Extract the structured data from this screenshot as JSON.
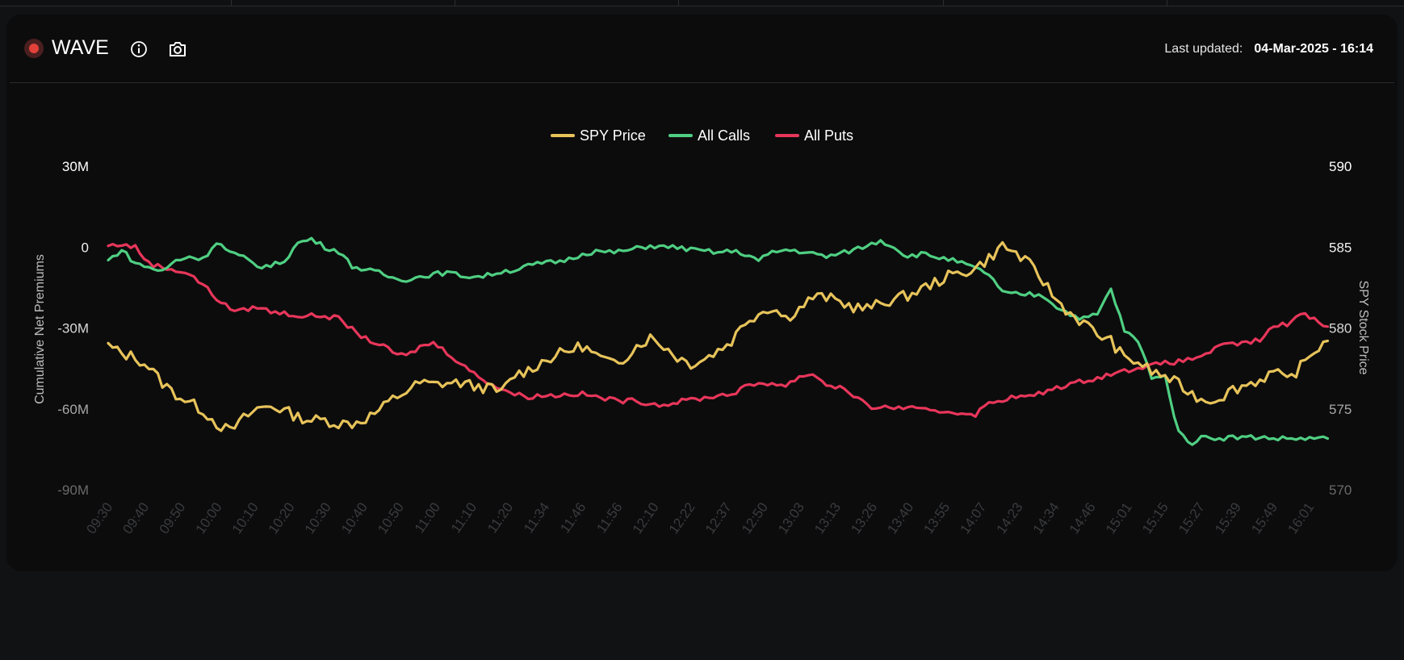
{
  "panel": {
    "title": "WAVE",
    "last_updated_label": "Last updated:",
    "last_updated_value": "04-Mar-2025 - 16:14"
  },
  "icons": {
    "status": "status-dot-icon",
    "info": "info-icon",
    "snapshot": "camera-icon"
  },
  "colors": {
    "spy": "#e7c35a",
    "calls": "#4fcf82",
    "puts": "#e8365a",
    "background": "#0c0c0d"
  },
  "chart_data": {
    "type": "line",
    "legend": [
      "SPY Price",
      "All Calls",
      "All Puts"
    ],
    "legend_position": "top-center",
    "ylabel_left": "Cumulative Net Premiums",
    "ylabel_right": "SPY Stock Price",
    "yticks_left": [
      "30M",
      "0",
      "-30M",
      "-60M",
      "-90M"
    ],
    "yticks_right": [
      "590",
      "585",
      "580",
      "575",
      "570"
    ],
    "ylim_left": [
      -90,
      30
    ],
    "ylim_right": [
      570,
      590
    ],
    "x_ticks": [
      "09:30",
      "09:40",
      "09:50",
      "10:00",
      "10:10",
      "10:20",
      "10:30",
      "10:40",
      "10:50",
      "11:00",
      "11:10",
      "11:20",
      "11:34",
      "11:46",
      "11:56",
      "12:10",
      "12:22",
      "12:37",
      "12:50",
      "13:03",
      "13:13",
      "13:26",
      "13:40",
      "13:55",
      "14:07",
      "14:23",
      "14:34",
      "14:46",
      "15:01",
      "15:15",
      "15:27",
      "15:39",
      "15:49",
      "16:01"
    ],
    "series": [
      {
        "name": "SPY Price",
        "axis": "right",
        "color": "#e7c35a",
        "points": [
          [
            0,
            578.9
          ],
          [
            1,
            578.4
          ],
          [
            2,
            578.2
          ],
          [
            3,
            577.6
          ],
          [
            4,
            576.6
          ],
          [
            5,
            575.9
          ],
          [
            6,
            575.4
          ],
          [
            7,
            574.9
          ],
          [
            8,
            574.1
          ],
          [
            9,
            573.6
          ],
          [
            10,
            574.4
          ],
          [
            11,
            575.0
          ],
          [
            12,
            575.2
          ],
          [
            13,
            574.9
          ],
          [
            14,
            574.5
          ],
          [
            15,
            574.3
          ],
          [
            16,
            574.3
          ],
          [
            17,
            574.1
          ],
          [
            18,
            574.1
          ],
          [
            19,
            574.4
          ],
          [
            20,
            574.9
          ],
          [
            21,
            575.6
          ],
          [
            22,
            576.1
          ],
          [
            23,
            576.6
          ],
          [
            24,
            576.5
          ],
          [
            25,
            576.6
          ],
          [
            26,
            576.6
          ],
          [
            27,
            576.4
          ],
          [
            28,
            576.3
          ],
          [
            29,
            576.0
          ],
          [
            30,
            577.1
          ],
          [
            31,
            577.4
          ],
          [
            32,
            577.9
          ],
          [
            33,
            578.3
          ],
          [
            34,
            578.6
          ],
          [
            35,
            578.9
          ],
          [
            36,
            578.3
          ],
          [
            37,
            577.8
          ],
          [
            38,
            578.1
          ],
          [
            39,
            578.9
          ],
          [
            40,
            579.4
          ],
          [
            41,
            578.9
          ],
          [
            42,
            578.2
          ],
          [
            43,
            577.8
          ],
          [
            44,
            578.1
          ],
          [
            45,
            578.6
          ],
          [
            46,
            579.2
          ],
          [
            47,
            580.4
          ],
          [
            48,
            580.9
          ],
          [
            49,
            581.3
          ],
          [
            50,
            580.6
          ],
          [
            51,
            581.2
          ],
          [
            52,
            581.9
          ],
          [
            53,
            581.9
          ],
          [
            54,
            581.6
          ],
          [
            55,
            581.3
          ],
          [
            56,
            581.2
          ],
          [
            57,
            581.5
          ],
          [
            58,
            581.8
          ],
          [
            59,
            582.0
          ],
          [
            60,
            582.4
          ],
          [
            61,
            582.8
          ],
          [
            62,
            583.2
          ],
          [
            63,
            583.4
          ],
          [
            64,
            583.7
          ],
          [
            65,
            584.3
          ],
          [
            66,
            585.1
          ],
          [
            67,
            584.6
          ],
          [
            68,
            583.9
          ],
          [
            69,
            582.9
          ],
          [
            70,
            581.7
          ],
          [
            71,
            580.9
          ],
          [
            72,
            580.3
          ],
          [
            73,
            579.6
          ],
          [
            74,
            579.2
          ],
          [
            75,
            578.1
          ],
          [
            76,
            577.9
          ],
          [
            77,
            577.3
          ],
          [
            78,
            577.0
          ],
          [
            79,
            576.5
          ],
          [
            80,
            575.9
          ],
          [
            81,
            575.5
          ],
          [
            82,
            575.7
          ],
          [
            83,
            576.2
          ],
          [
            84,
            576.5
          ],
          [
            85,
            576.8
          ],
          [
            86,
            577.3
          ],
          [
            87,
            576.7
          ],
          [
            88,
            577.6
          ],
          [
            89,
            578.6
          ],
          [
            90,
            579.2
          ]
        ]
      },
      {
        "name": "All Calls",
        "axis": "left",
        "color": "#4fcf82",
        "points": [
          [
            0,
            -5.0
          ],
          [
            1,
            -1.0
          ],
          [
            2,
            -6.0
          ],
          [
            3,
            -7.5
          ],
          [
            4,
            -9.0
          ],
          [
            5,
            -5.0
          ],
          [
            6,
            -3.5
          ],
          [
            7,
            -4.5
          ],
          [
            8,
            2.0
          ],
          [
            9,
            -2.0
          ],
          [
            10,
            -4.0
          ],
          [
            11,
            -7.0
          ],
          [
            12,
            -7.0
          ],
          [
            13,
            -5.0
          ],
          [
            14,
            1.5
          ],
          [
            15,
            3.0
          ],
          [
            16,
            0.0
          ],
          [
            17,
            -1.5
          ],
          [
            18,
            -7.0
          ],
          [
            19,
            -8.5
          ],
          [
            20,
            -9.5
          ],
          [
            21,
            -11.5
          ],
          [
            22,
            -12.0
          ],
          [
            23,
            -11.0
          ],
          [
            24,
            -10.0
          ],
          [
            25,
            -9.5
          ],
          [
            26,
            -10.5
          ],
          [
            27,
            -11.0
          ],
          [
            28,
            -10.5
          ],
          [
            29,
            -9.0
          ],
          [
            30,
            -8.5
          ],
          [
            31,
            -7.0
          ],
          [
            32,
            -6.0
          ],
          [
            33,
            -5.5
          ],
          [
            34,
            -4.5
          ],
          [
            35,
            -2.5
          ],
          [
            36,
            -1.5
          ],
          [
            37,
            -2.0
          ],
          [
            38,
            -1.5
          ],
          [
            39,
            -0.5
          ],
          [
            40,
            0.5
          ],
          [
            41,
            0.0
          ],
          [
            42,
            0.0
          ],
          [
            43,
            -1.0
          ],
          [
            44,
            -1.5
          ],
          [
            45,
            -2.0
          ],
          [
            46,
            -1.5
          ],
          [
            47,
            -2.5
          ],
          [
            48,
            -5.0
          ],
          [
            49,
            -2.0
          ],
          [
            50,
            -1.0
          ],
          [
            51,
            -1.5
          ],
          [
            52,
            -2.5
          ],
          [
            53,
            -3.5
          ],
          [
            54,
            -2.5
          ],
          [
            55,
            -1.0
          ],
          [
            56,
            0.5
          ],
          [
            57,
            2.5
          ],
          [
            58,
            0.0
          ],
          [
            59,
            -3.5
          ],
          [
            60,
            -2.5
          ],
          [
            61,
            -3.5
          ],
          [
            62,
            -4.5
          ],
          [
            63,
            -6.0
          ],
          [
            64,
            -8.0
          ],
          [
            65,
            -10.0
          ],
          [
            66,
            -17.0
          ],
          [
            67,
            -17.5
          ],
          [
            68,
            -17.5
          ],
          [
            69,
            -18.0
          ],
          [
            70,
            -22.0
          ],
          [
            71,
            -25.0
          ],
          [
            72,
            -26.5
          ],
          [
            73,
            -25.0
          ],
          [
            74,
            -15.5
          ],
          [
            75,
            -31.0
          ],
          [
            76,
            -35.0
          ],
          [
            77,
            -48.0
          ],
          [
            78,
            -48.0
          ],
          [
            79,
            -69.0
          ],
          [
            80,
            -72.5
          ],
          [
            81,
            -70.0
          ],
          [
            82,
            -71.0
          ],
          [
            83,
            -70.5
          ],
          [
            84,
            -70.5
          ],
          [
            85,
            -70.5
          ],
          [
            86,
            -71.0
          ],
          [
            87,
            -71.0
          ],
          [
            88,
            -71.0
          ],
          [
            89,
            -71.0
          ],
          [
            90,
            -71.0
          ]
        ]
      },
      {
        "name": "All Puts",
        "axis": "left",
        "color": "#e8365a",
        "points": [
          [
            0,
            0.5
          ],
          [
            1,
            1.0
          ],
          [
            2,
            0.0
          ],
          [
            3,
            -6.0
          ],
          [
            4,
            -7.5
          ],
          [
            5,
            -8.5
          ],
          [
            6,
            -10.0
          ],
          [
            7,
            -14.0
          ],
          [
            8,
            -19.0
          ],
          [
            9,
            -23.0
          ],
          [
            10,
            -23.5
          ],
          [
            11,
            -22.0
          ],
          [
            12,
            -24.0
          ],
          [
            13,
            -24.5
          ],
          [
            14,
            -25.5
          ],
          [
            15,
            -25.5
          ],
          [
            16,
            -25.5
          ],
          [
            17,
            -26.5
          ],
          [
            18,
            -30.5
          ],
          [
            19,
            -34.0
          ],
          [
            20,
            -36.0
          ],
          [
            21,
            -39.0
          ],
          [
            22,
            -40.5
          ],
          [
            23,
            -37.0
          ],
          [
            24,
            -35.5
          ],
          [
            25,
            -39.0
          ],
          [
            26,
            -43.0
          ],
          [
            27,
            -47.0
          ],
          [
            28,
            -50.0
          ],
          [
            29,
            -52.5
          ],
          [
            30,
            -54.5
          ],
          [
            31,
            -55.5
          ],
          [
            32,
            -55.0
          ],
          [
            33,
            -55.0
          ],
          [
            34,
            -54.5
          ],
          [
            35,
            -54.5
          ],
          [
            36,
            -55.5
          ],
          [
            37,
            -56.5
          ],
          [
            38,
            -57.0
          ],
          [
            39,
            -57.0
          ],
          [
            40,
            -58.0
          ],
          [
            41,
            -58.5
          ],
          [
            42,
            -57.5
          ],
          [
            43,
            -56.5
          ],
          [
            44,
            -56.0
          ],
          [
            45,
            -55.0
          ],
          [
            46,
            -54.5
          ],
          [
            47,
            -52.0
          ],
          [
            48,
            -50.5
          ],
          [
            49,
            -50.5
          ],
          [
            50,
            -51.5
          ],
          [
            51,
            -48.0
          ],
          [
            52,
            -47.0
          ],
          [
            53,
            -51.0
          ],
          [
            54,
            -52.0
          ],
          [
            55,
            -55.0
          ],
          [
            56,
            -59.0
          ],
          [
            57,
            -59.5
          ],
          [
            58,
            -59.5
          ],
          [
            59,
            -59.5
          ],
          [
            60,
            -60.5
          ],
          [
            61,
            -61.0
          ],
          [
            62,
            -61.0
          ],
          [
            63,
            -61.5
          ],
          [
            64,
            -62.0
          ],
          [
            65,
            -58.0
          ],
          [
            66,
            -56.5
          ],
          [
            67,
            -55.5
          ],
          [
            68,
            -55.5
          ],
          [
            69,
            -54.0
          ],
          [
            70,
            -52.0
          ],
          [
            71,
            -51.0
          ],
          [
            72,
            -49.5
          ],
          [
            73,
            -48.5
          ],
          [
            74,
            -47.0
          ],
          [
            75,
            -46.0
          ],
          [
            76,
            -44.5
          ],
          [
            77,
            -44.0
          ],
          [
            78,
            -43.0
          ],
          [
            79,
            -42.5
          ],
          [
            80,
            -41.5
          ],
          [
            81,
            -39.5
          ],
          [
            82,
            -37.0
          ],
          [
            83,
            -36.0
          ],
          [
            84,
            -35.5
          ],
          [
            85,
            -34.5
          ],
          [
            86,
            -29.5
          ],
          [
            87,
            -28.5
          ],
          [
            88,
            -24.5
          ],
          [
            89,
            -26.5
          ],
          [
            90,
            -29.5
          ]
        ]
      }
    ]
  }
}
